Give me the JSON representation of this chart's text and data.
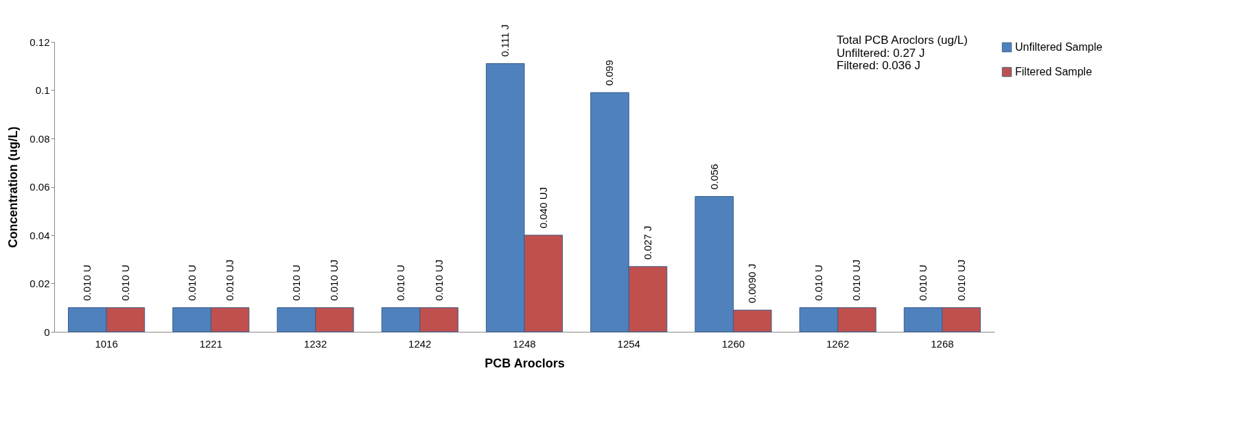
{
  "chart_data": {
    "type": "bar",
    "xlabel": "PCB Aroclors",
    "ylabel": "Concentration (ug/L)",
    "categories": [
      "1016",
      "1221",
      "1232",
      "1242",
      "1248",
      "1254",
      "1260",
      "1262",
      "1268"
    ],
    "series": [
      {
        "name": "Unfiltered Sample",
        "color": "#4f81bd",
        "values": [
          0.01,
          0.01,
          0.01,
          0.01,
          0.111,
          0.099,
          0.056,
          0.01,
          0.01
        ],
        "value_labels": [
          "0.010 U",
          "0.010 U",
          "0.010 U",
          "0.010 U",
          "0.111 J",
          "0.099",
          "0.056",
          "0.010 U",
          "0.010 U"
        ]
      },
      {
        "name": "Filtered Sample",
        "color": "#c0504d",
        "values": [
          0.01,
          0.01,
          0.01,
          0.01,
          0.04,
          0.027,
          0.009,
          0.01,
          0.01
        ],
        "value_labels": [
          "0.010 U",
          "0.010 UJ",
          "0.010 UJ",
          "0.010 UJ",
          "0.040 UJ",
          "0.027 J",
          "0.0090 J",
          "0.010 UJ",
          "0.010 UJ"
        ]
      }
    ],
    "ylim": [
      0,
      0.12
    ],
    "yticks": [
      0,
      0.02,
      0.04,
      0.06,
      0.08,
      0.1,
      0.12
    ],
    "grid": false,
    "legend": "right",
    "annotations": [
      "Total PCB Aroclors (ug/L)",
      "Unfiltered:     0.27 J",
      "Filtered:         0.036 J"
    ]
  }
}
